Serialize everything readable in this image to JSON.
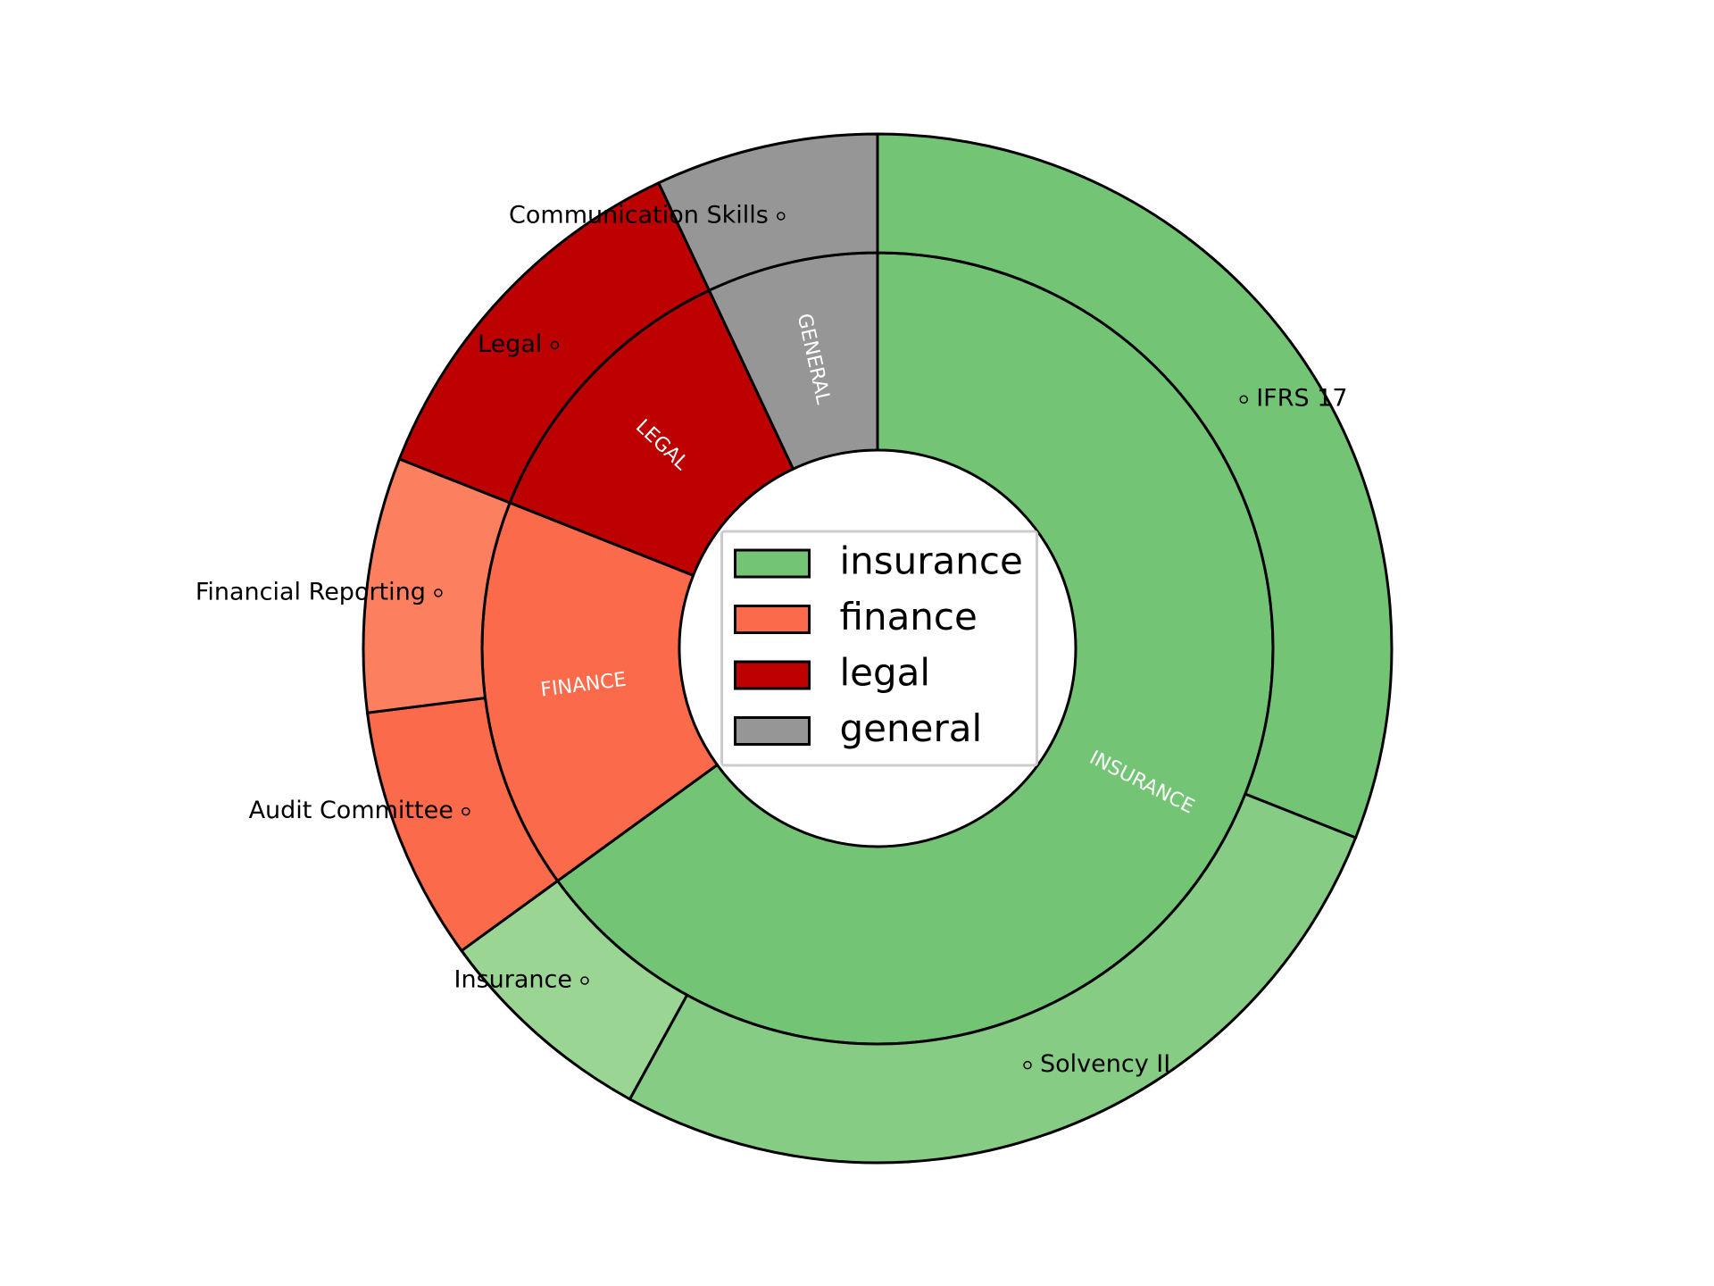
{
  "chart_data": {
    "type": "sunburst",
    "inner": {
      "categories": [
        "insurance",
        "finance",
        "legal",
        "general"
      ],
      "labels": [
        "INSURANCE",
        "FINANCE",
        "LEGAL",
        "GENERAL"
      ],
      "values": [
        65,
        16,
        12,
        7
      ],
      "colors": [
        "#74c476",
        "#fb6a4a",
        "#bd0000",
        "#969696"
      ]
    },
    "outer": {
      "categories": [
        "IFRS 17",
        "Solvency II",
        "Insurance",
        "Audit Committee",
        "Financial Reporting",
        "Legal",
        "Communication Skills"
      ],
      "values": [
        31,
        27,
        7,
        8,
        8,
        12,
        7
      ],
      "colors": [
        "#74c476",
        "#86cc85",
        "#9ad594",
        "#fb6a4a",
        "#fc7f5f",
        "#bd0000",
        "#969696"
      ]
    },
    "legend": "center"
  }
}
